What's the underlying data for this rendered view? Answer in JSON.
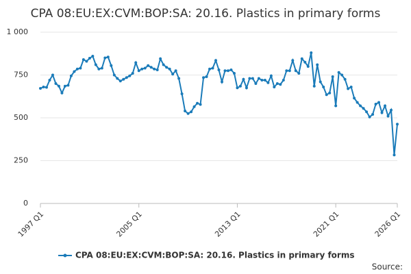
{
  "chart_data": {
    "type": "line",
    "title": "CPA 08:EU:EX:CVM:BOP:SA: 20.16. Plastics in primary forms",
    "source": "Source:",
    "categories": [
      "1997 Q1",
      null,
      null,
      null,
      null,
      null,
      null,
      null,
      null,
      null,
      null,
      null,
      null,
      null,
      null,
      null,
      null,
      null,
      null,
      null,
      null,
      null,
      null,
      null,
      null,
      null,
      null,
      null,
      null,
      null,
      null,
      null,
      "2005 Q1",
      null,
      null,
      null,
      null,
      null,
      null,
      null,
      null,
      null,
      null,
      null,
      null,
      null,
      null,
      null,
      null,
      null,
      null,
      null,
      null,
      null,
      null,
      null,
      null,
      null,
      null,
      null,
      null,
      null,
      null,
      null,
      "2013 Q1",
      null,
      null,
      null,
      null,
      null,
      null,
      null,
      null,
      null,
      null,
      null,
      null,
      null,
      null,
      null,
      null,
      null,
      null,
      null,
      null,
      null,
      null,
      null,
      null,
      null,
      null,
      null,
      null,
      null,
      null,
      null,
      "2021 Q1",
      null,
      null,
      null,
      null,
      null,
      null,
      null,
      null,
      null,
      null,
      null,
      null,
      null,
      null,
      null,
      null,
      null,
      null,
      null,
      "2026 Q1"
    ],
    "series": [
      {
        "name": "CPA 08:EU:EX:CVM:BOP:SA: 20.16. Plastics in primary forms",
        "color": "#1a7bb9",
        "values": [
          672,
          680,
          678,
          720,
          750,
          700,
          685,
          645,
          685,
          690,
          745,
          770,
          785,
          790,
          840,
          830,
          848,
          860,
          810,
          785,
          790,
          850,
          855,
          805,
          750,
          730,
          715,
          725,
          735,
          745,
          760,
          822,
          775,
          785,
          790,
          805,
          795,
          785,
          780,
          845,
          810,
          795,
          785,
          755,
          775,
          730,
          640,
          540,
          525,
          535,
          565,
          585,
          578,
          735,
          740,
          785,
          790,
          835,
          780,
          710,
          775,
          775,
          780,
          760,
          675,
          685,
          725,
          675,
          730,
          730,
          700,
          730,
          720,
          720,
          705,
          745,
          680,
          700,
          695,
          720,
          775,
          775,
          835,
          775,
          760,
          845,
          825,
          800,
          880,
          685,
          810,
          710,
          680,
          635,
          645,
          740,
          570,
          765,
          750,
          725,
          670,
          680,
          615,
          590,
          570,
          555,
          535,
          505,
          520,
          580,
          590,
          530,
          570,
          510,
          545,
          283,
          463
        ]
      }
    ],
    "ylim": [
      0,
      1000
    ],
    "yticks": [
      0,
      250,
      500,
      750,
      {
        "value": 1000,
        "label": "1 000"
      }
    ],
    "grid": true
  }
}
